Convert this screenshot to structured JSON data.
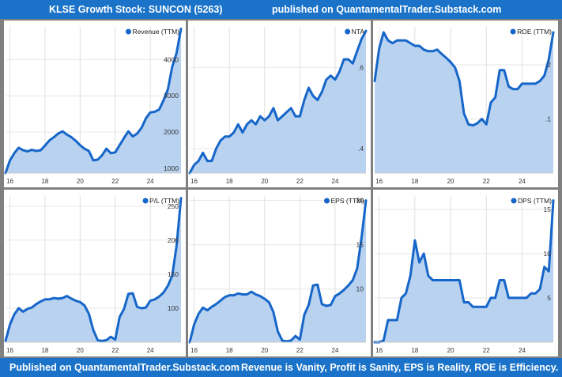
{
  "header": {
    "left_title": "KLSE Growth Stock: SUNCON (5263)",
    "right_title": "published on QuantamentalTrader.Substack.com"
  },
  "footer": {
    "left_text": "Published on QuantamentalTrader.Substack.com",
    "right_text": "Revenue is Vanity, Profit is Sanity, EPS is Reality, ROE is Efficiency."
  },
  "colors": {
    "line": "#1666c9",
    "fill": "#b8d2f0",
    "banner": "#1a73c9"
  },
  "chart_data": [
    {
      "type": "area",
      "legend": "Revenue (TTM)",
      "xticks": [
        "16",
        "18",
        "20",
        "22",
        "24"
      ],
      "xlim": [
        2015.75,
        2025.75
      ],
      "yticks": [
        1000,
        2000,
        3000,
        4000
      ],
      "ylim": [
        870,
        4900
      ],
      "ytick_fmt": "int",
      "x": [
        2015.75,
        2016,
        2016.25,
        2016.5,
        2016.75,
        2017,
        2017.25,
        2017.5,
        2017.75,
        2018,
        2018.25,
        2018.5,
        2018.75,
        2019,
        2019.25,
        2019.5,
        2019.75,
        2020,
        2020.25,
        2020.5,
        2020.75,
        2021,
        2021.25,
        2021.5,
        2021.75,
        2022,
        2022.25,
        2022.5,
        2022.75,
        2023,
        2023.25,
        2023.5,
        2023.75,
        2024,
        2024.25,
        2024.5,
        2024.75,
        2025,
        2025.25,
        2025.5,
        2025.75
      ],
      "y": [
        870,
        1220,
        1420,
        1570,
        1500,
        1470,
        1510,
        1480,
        1500,
        1630,
        1770,
        1860,
        1960,
        2020,
        1930,
        1860,
        1760,
        1640,
        1540,
        1480,
        1220,
        1240,
        1360,
        1540,
        1420,
        1440,
        1640,
        1840,
        2020,
        1880,
        1960,
        2120,
        2380,
        2540,
        2560,
        2620,
        2870,
        3180,
        3800,
        4180,
        4850
      ]
    },
    {
      "type": "area",
      "legend": "NTA",
      "xticks": [
        "16",
        "18",
        "20",
        "22",
        "24"
      ],
      "xlim": [
        2015.75,
        2025.75
      ],
      "yticks": [
        0.4,
        0.6
      ],
      "ylim": [
        0.34,
        0.7
      ],
      "ytick_fmt": "dot",
      "x": [
        2015.75,
        2016,
        2016.25,
        2016.5,
        2016.75,
        2017,
        2017.25,
        2017.5,
        2017.75,
        2018,
        2018.25,
        2018.5,
        2018.75,
        2019,
        2019.25,
        2019.5,
        2019.75,
        2020,
        2020.25,
        2020.5,
        2020.75,
        2021,
        2021.25,
        2021.5,
        2021.75,
        2022,
        2022.25,
        2022.5,
        2022.75,
        2023,
        2023.25,
        2023.5,
        2023.75,
        2024,
        2024.25,
        2024.5,
        2024.75,
        2025,
        2025.25,
        2025.5,
        2025.75
      ],
      "y": [
        0.34,
        0.36,
        0.37,
        0.39,
        0.37,
        0.37,
        0.4,
        0.42,
        0.43,
        0.43,
        0.44,
        0.46,
        0.44,
        0.46,
        0.47,
        0.46,
        0.48,
        0.47,
        0.48,
        0.5,
        0.47,
        0.48,
        0.49,
        0.5,
        0.48,
        0.48,
        0.52,
        0.55,
        0.53,
        0.52,
        0.54,
        0.57,
        0.58,
        0.57,
        0.59,
        0.62,
        0.62,
        0.61,
        0.64,
        0.67,
        0.69
      ]
    },
    {
      "type": "area",
      "legend": "ROE (TTM)",
      "xticks": [
        "16",
        "18",
        "20",
        "22",
        "24"
      ],
      "xlim": [
        2015.75,
        2025.75
      ],
      "yticks": [
        0.1,
        0.2
      ],
      "ylim": [
        0.0,
        0.27
      ],
      "ytick_fmt": "dot",
      "x": [
        2015.75,
        2016,
        2016.25,
        2016.5,
        2016.75,
        2017,
        2017.25,
        2017.5,
        2017.75,
        2018,
        2018.25,
        2018.5,
        2018.75,
        2019,
        2019.25,
        2019.5,
        2019.75,
        2020,
        2020.25,
        2020.5,
        2020.75,
        2021,
        2021.25,
        2021.5,
        2021.75,
        2022,
        2022.25,
        2022.5,
        2022.75,
        2023,
        2023.25,
        2023.5,
        2023.75,
        2024,
        2024.25,
        2024.5,
        2024.75,
        2025,
        2025.25,
        2025.5,
        2025.75
      ],
      "y": [
        0.17,
        0.23,
        0.26,
        0.245,
        0.24,
        0.245,
        0.245,
        0.245,
        0.24,
        0.235,
        0.235,
        0.228,
        0.225,
        0.225,
        0.228,
        0.22,
        0.213,
        0.205,
        0.195,
        0.17,
        0.11,
        0.09,
        0.088,
        0.092,
        0.1,
        0.09,
        0.13,
        0.14,
        0.19,
        0.19,
        0.16,
        0.155,
        0.155,
        0.165,
        0.165,
        0.165,
        0.165,
        0.17,
        0.18,
        0.21,
        0.26
      ]
    },
    {
      "type": "area",
      "legend": "P/L (TTM)",
      "xticks": [
        "16",
        "18",
        "20",
        "22",
        "24"
      ],
      "xlim": [
        2015.75,
        2025.75
      ],
      "yticks": [
        100,
        150,
        200,
        250
      ],
      "ylim": [
        50,
        265
      ],
      "ytick_fmt": "int",
      "x": [
        2015.75,
        2016,
        2016.25,
        2016.5,
        2016.75,
        2017,
        2017.25,
        2017.5,
        2017.75,
        2018,
        2018.25,
        2018.5,
        2018.75,
        2019,
        2019.25,
        2019.5,
        2019.75,
        2020,
        2020.25,
        2020.5,
        2020.75,
        2021,
        2021.25,
        2021.5,
        2021.75,
        2022,
        2022.25,
        2022.5,
        2022.75,
        2023,
        2023.25,
        2023.5,
        2023.75,
        2024,
        2024.25,
        2024.5,
        2024.75,
        2025,
        2025.25,
        2025.5,
        2025.75
      ],
      "y": [
        52,
        76,
        91,
        100,
        95,
        99,
        101,
        106,
        110,
        113,
        113,
        115,
        114,
        115,
        118,
        114,
        111,
        109,
        104,
        92,
        68,
        53,
        52,
        53,
        58,
        54,
        87,
        99,
        121,
        122,
        102,
        100,
        101,
        111,
        113,
        117,
        123,
        133,
        148,
        192,
        262
      ]
    },
    {
      "type": "area",
      "legend": "EPS (TTM)",
      "xticks": [
        "16",
        "18",
        "20",
        "22",
        "24"
      ],
      "xlim": [
        2015.75,
        2025.75
      ],
      "yticks": [
        10,
        15,
        20
      ],
      "ylim": [
        4.0,
        20.5
      ],
      "ytick_fmt": "int",
      "x": [
        2015.75,
        2016,
        2016.25,
        2016.5,
        2016.75,
        2017,
        2017.25,
        2017.5,
        2017.75,
        2018,
        2018.25,
        2018.5,
        2018.75,
        2019,
        2019.25,
        2019.5,
        2019.75,
        2020,
        2020.25,
        2020.5,
        2020.75,
        2021,
        2021.25,
        2021.5,
        2021.75,
        2022,
        2022.25,
        2022.5,
        2022.75,
        2023,
        2023.25,
        2023.5,
        2023.75,
        2024,
        2024.25,
        2024.5,
        2024.75,
        2025,
        2025.25,
        2025.5,
        2025.75
      ],
      "y": [
        4.0,
        6.0,
        7.2,
        7.9,
        7.6,
        8.0,
        8.3,
        8.7,
        9.1,
        9.3,
        9.3,
        9.5,
        9.4,
        9.4,
        9.7,
        9.4,
        9.2,
        8.9,
        8.5,
        7.4,
        5.2,
        4.2,
        4.1,
        4.2,
        4.7,
        4.3,
        7.1,
        8.2,
        10.4,
        10.5,
        8.3,
        8.1,
        8.2,
        9.2,
        9.5,
        9.9,
        10.4,
        11.0,
        12.3,
        15.8,
        20.0
      ]
    },
    {
      "type": "area",
      "legend": "DPS (TTM)",
      "xticks": [
        "16",
        "18",
        "20",
        "22",
        "24"
      ],
      "xlim": [
        2015.75,
        2025.75
      ],
      "yticks": [
        5,
        10,
        15
      ],
      "ylim": [
        0,
        16.5
      ],
      "ytick_fmt": "int",
      "x": [
        2015.75,
        2016,
        2016.25,
        2016.5,
        2016.75,
        2017,
        2017.25,
        2017.5,
        2017.75,
        2018,
        2018.25,
        2018.5,
        2018.75,
        2019,
        2019.25,
        2019.5,
        2019.75,
        2020,
        2020.25,
        2020.5,
        2020.75,
        2021,
        2021.25,
        2021.5,
        2021.75,
        2022,
        2022.25,
        2022.5,
        2022.75,
        2023,
        2023.25,
        2023.5,
        2023.75,
        2024,
        2024.25,
        2024.5,
        2024.75,
        2025,
        2025.25,
        2025.5,
        2025.75
      ],
      "y": [
        0,
        0,
        0.2,
        2.5,
        2.5,
        2.5,
        5,
        5.5,
        7.5,
        11.5,
        9,
        10,
        7.5,
        7,
        7,
        7,
        7,
        7,
        7,
        7,
        4.5,
        4.5,
        4,
        4,
        4,
        4,
        5,
        5,
        7,
        7,
        5,
        5,
        5,
        5,
        5,
        5.5,
        5.5,
        6,
        8.5,
        8,
        16
      ]
    }
  ]
}
